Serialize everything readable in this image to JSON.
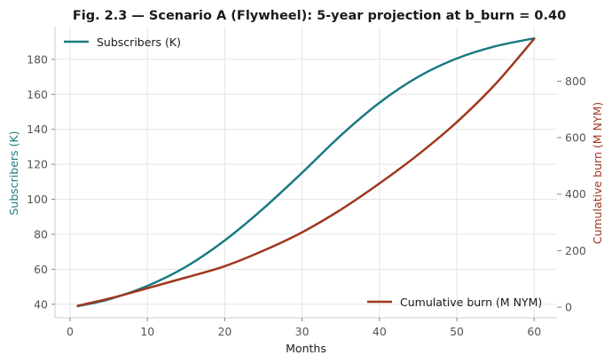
{
  "chart_data": {
    "type": "line",
    "title": "Fig. 2.3 — Scenario A (Flywheel): 5-year projection at b_burn = 0.40",
    "xlabel": "Months",
    "xlim": [
      -1.95,
      62.95
    ],
    "xticks": [
      0,
      10,
      20,
      30,
      40,
      50,
      60
    ],
    "grid": true,
    "axes": {
      "left": {
        "label": "Subscribers (K)",
        "ylim": [
          32.3,
          198.7
        ],
        "ticks": [
          40,
          60,
          80,
          100,
          120,
          140,
          160,
          180
        ],
        "color": "#1a7a82"
      },
      "right": {
        "label": "Cumulative burn (M NYM)",
        "ylim": [
          -37.5,
          993
        ],
        "ticks": [
          0,
          200,
          400,
          600,
          800
        ],
        "color": "#a0371e"
      }
    },
    "series": [
      {
        "name": "Subscribers (K)",
        "axis": "left",
        "color": "#1a7a82",
        "x": [
          1,
          5,
          10,
          15,
          20,
          25,
          30,
          35,
          40,
          45,
          50,
          55,
          60
        ],
        "y": [
          38.9,
          42.8,
          50.5,
          61.5,
          76.5,
          94.8,
          115.2,
          136.5,
          155.2,
          170.0,
          180.5,
          187.5,
          192.0
        ],
        "legend": "top-left"
      },
      {
        "name": "Cumulative burn (M NYM)",
        "axis": "right",
        "color": "#a0371e",
        "x": [
          1,
          5,
          10,
          15,
          20,
          25,
          30,
          35,
          40,
          45,
          50,
          55,
          60
        ],
        "y": [
          5,
          30,
          67,
          105,
          145,
          200,
          265,
          345,
          438,
          540,
          655,
          790,
          950
        ],
        "legend": "bottom-right"
      }
    ]
  }
}
